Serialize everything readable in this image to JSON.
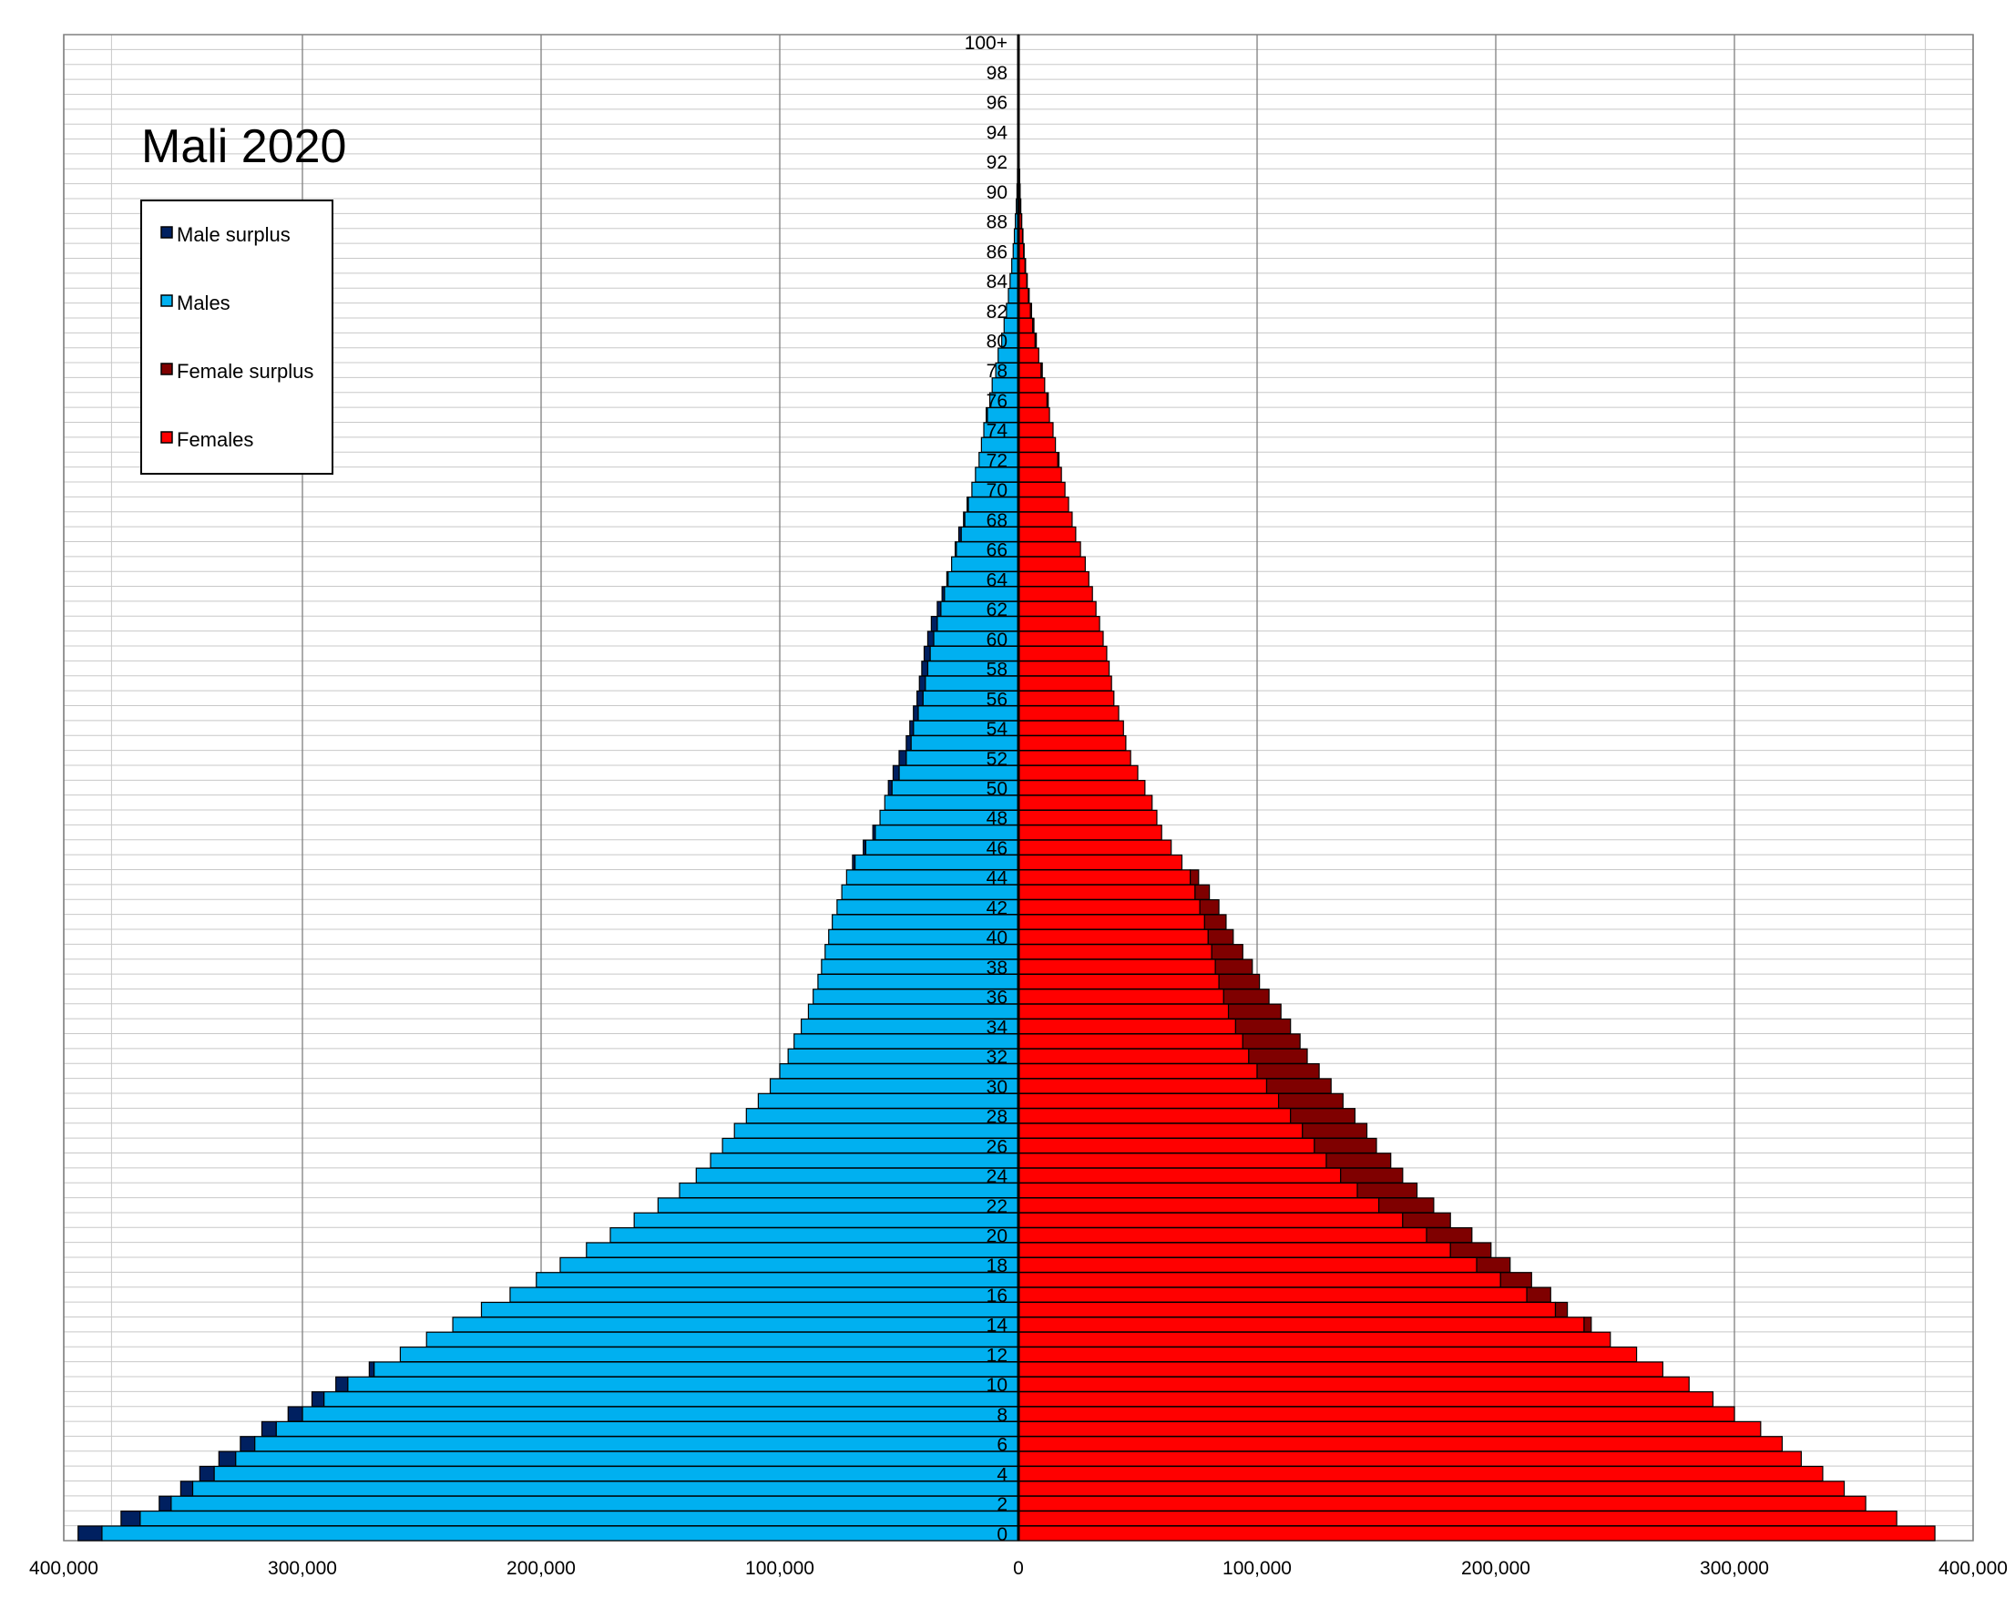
{
  "chart_data": {
    "type": "bar",
    "orientation": "horizontal",
    "title": "Mali 2020",
    "xlim": [
      -400000,
      400000
    ],
    "x_ticks": [
      {
        "value": -400000,
        "label": "400,000"
      },
      {
        "value": -300000,
        "label": "300,000"
      },
      {
        "value": -200000,
        "label": "200,000"
      },
      {
        "value": -100000,
        "label": "100,000"
      },
      {
        "value": 0,
        "label": "0"
      },
      {
        "value": 100000,
        "label": "100,000"
      },
      {
        "value": 200000,
        "label": "200,000"
      },
      {
        "value": 300000,
        "label": "300,000"
      },
      {
        "value": 400000,
        "label": "400,000"
      }
    ],
    "categories": [
      "0",
      "1",
      "2",
      "3",
      "4",
      "5",
      "6",
      "7",
      "8",
      "9",
      "10",
      "11",
      "12",
      "13",
      "14",
      "15",
      "16",
      "17",
      "18",
      "19",
      "20",
      "21",
      "22",
      "23",
      "24",
      "25",
      "26",
      "27",
      "28",
      "29",
      "30",
      "31",
      "32",
      "33",
      "34",
      "35",
      "36",
      "37",
      "38",
      "39",
      "40",
      "41",
      "42",
      "43",
      "44",
      "45",
      "46",
      "47",
      "48",
      "49",
      "50",
      "51",
      "52",
      "53",
      "54",
      "55",
      "56",
      "57",
      "58",
      "59",
      "60",
      "61",
      "62",
      "63",
      "64",
      "65",
      "66",
      "67",
      "68",
      "69",
      "70",
      "71",
      "72",
      "73",
      "74",
      "75",
      "76",
      "77",
      "78",
      "79",
      "80",
      "81",
      "82",
      "83",
      "84",
      "85",
      "86",
      "87",
      "88",
      "89",
      "90",
      "91",
      "92",
      "93",
      "94",
      "95",
      "96",
      "97",
      "98",
      "99",
      "100+"
    ],
    "category_labels_shown": [
      "0",
      "2",
      "4",
      "6",
      "8",
      "10",
      "12",
      "14",
      "16",
      "18",
      "20",
      "22",
      "24",
      "26",
      "28",
      "30",
      "32",
      "34",
      "36",
      "38",
      "40",
      "42",
      "44",
      "46",
      "48",
      "50",
      "52",
      "54",
      "56",
      "58",
      "60",
      "62",
      "64",
      "66",
      "68",
      "70",
      "72",
      "74",
      "76",
      "78",
      "80",
      "82",
      "84",
      "86",
      "88",
      "90",
      "92",
      "94",
      "96",
      "98",
      "100+"
    ],
    "series": [
      {
        "name": "Males",
        "color": "#00B0F0",
        "values": [
          394000,
          376000,
          360000,
          351000,
          343000,
          335000,
          326000,
          317000,
          306000,
          296000,
          286000,
          272000,
          259000,
          248000,
          237000,
          225000,
          213000,
          202000,
          192000,
          181000,
          171000,
          161000,
          151000,
          142000,
          135000,
          129000,
          124000,
          119000,
          114000,
          109000,
          104000,
          100000,
          96500,
          94000,
          91000,
          88000,
          86000,
          84000,
          82500,
          81000,
          79500,
          78000,
          76000,
          74000,
          72000,
          69500,
          65000,
          61000,
          58000,
          56000,
          54500,
          52500,
          50000,
          47000,
          45500,
          44000,
          42500,
          41500,
          40500,
          39500,
          38000,
          36500,
          34000,
          32000,
          30000,
          28000,
          26500,
          25000,
          23000,
          21500,
          19500,
          18000,
          16500,
          15500,
          14500,
          13500,
          12000,
          11000,
          9500,
          8500,
          7000,
          6000,
          5000,
          4200,
          3500,
          2800,
          2200,
          1700,
          1300,
          900,
          600,
          400,
          300,
          200,
          130,
          90,
          60,
          40,
          30,
          20,
          15
        ]
      },
      {
        "name": "Females",
        "color": "#FF0000",
        "values": [
          384000,
          368000,
          355000,
          346000,
          337000,
          328000,
          320000,
          311000,
          300000,
          291000,
          281000,
          270000,
          259000,
          248000,
          240000,
          230000,
          223000,
          215000,
          206000,
          198000,
          190000,
          181000,
          174000,
          167000,
          161000,
          156000,
          150000,
          146000,
          141000,
          136000,
          131000,
          126000,
          121000,
          118000,
          114000,
          110000,
          105000,
          101000,
          98000,
          94000,
          90000,
          87000,
          84000,
          80000,
          75500,
          68500,
          64000,
          60000,
          58000,
          56000,
          53000,
          50000,
          47000,
          45000,
          44000,
          42000,
          40000,
          39000,
          38000,
          37000,
          35500,
          34000,
          32500,
          31000,
          29500,
          28000,
          26000,
          24000,
          22500,
          21000,
          19500,
          18000,
          17000,
          15500,
          14500,
          13000,
          12500,
          11000,
          10000,
          8500,
          7500,
          6500,
          5500,
          4500,
          3700,
          3000,
          2400,
          1900,
          1400,
          1000,
          700,
          500,
          350,
          250,
          160,
          100,
          70,
          50,
          30,
          20,
          15
        ]
      },
      {
        "name": "Male surplus",
        "color": "#002060"
      },
      {
        "name": "Female surplus",
        "color": "#7F0000"
      }
    ],
    "legend": {
      "position": "top-left",
      "entries": [
        "Male surplus",
        "Males",
        "Female surplus",
        "Females"
      ]
    },
    "grid": {
      "vertical": true,
      "horizontal": true
    }
  }
}
